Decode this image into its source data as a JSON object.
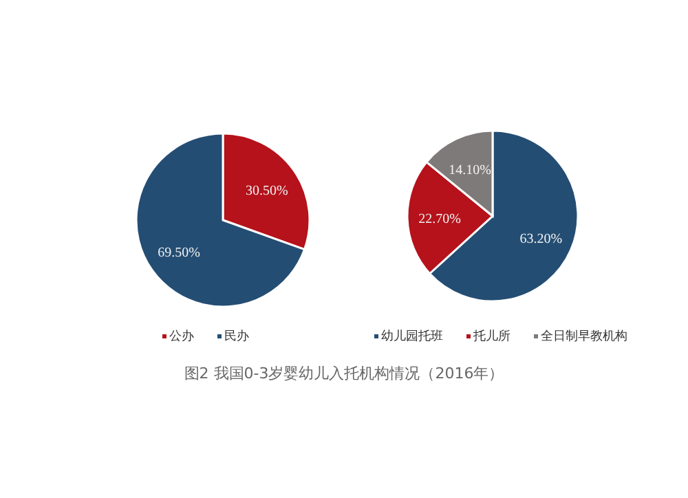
{
  "chart_data": [
    {
      "type": "pie",
      "categories": [
        "公办",
        "民办"
      ],
      "values": [
        30.5,
        69.5
      ],
      "colors": [
        "#b5121b",
        "#244d73"
      ],
      "value_labels": [
        "30.50%",
        "69.50%"
      ],
      "legend": "bottom"
    },
    {
      "type": "pie",
      "categories": [
        "幼儿园托班",
        "托儿所",
        "全日制早教机构"
      ],
      "values": [
        63.2,
        22.7,
        14.1
      ],
      "colors": [
        "#244d73",
        "#b5121b",
        "#7f7a7a"
      ],
      "value_labels": [
        "63.20%",
        "22.70%",
        "14.10%"
      ],
      "legend": "bottom",
      "annotations": [
        "图2  我国0-3岁婴幼儿入托机构情况（2016年）"
      ]
    }
  ]
}
